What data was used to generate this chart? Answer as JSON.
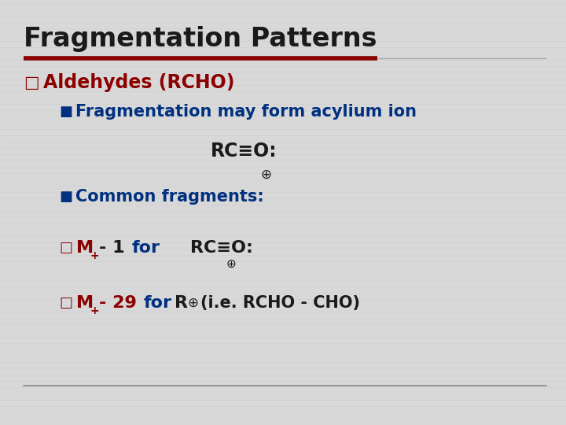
{
  "title": "Fragmentation Patterns",
  "title_color": "#1a1a1a",
  "title_fontsize": 24,
  "bg_color": "#d8d8d8",
  "red_line_color": "#8B0000",
  "line1_color": "#8B0000",
  "line1_text": "Aldehydes (RCHO)",
  "line1_fontsize": 17,
  "bullet1_color": "#003080",
  "bullet1_text": "Fragmentation may form acylium ion",
  "bullet1_fontsize": 15,
  "formula_color": "#1a1a1a",
  "formula_fontsize": 17,
  "plus_text": "⊕",
  "bullet2_color": "#003080",
  "bullet2_text": "Common fragments:",
  "bullet2_fontsize": 15,
  "dark_red": "#8B0000",
  "black": "#1a1a1a",
  "blue": "#003080",
  "footer_line_color": "#888888"
}
